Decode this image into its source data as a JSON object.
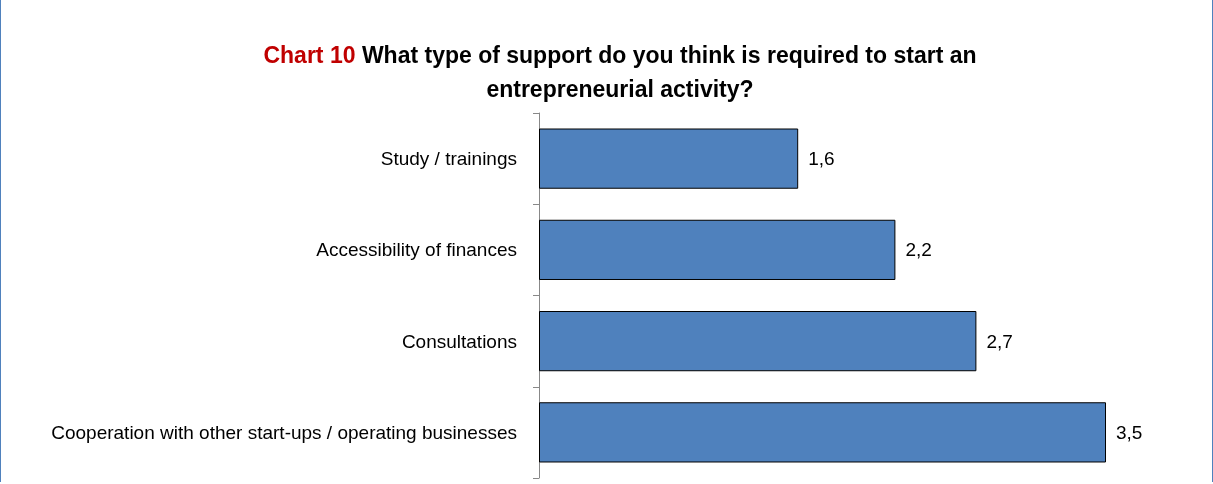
{
  "chart_data": {
    "type": "bar",
    "orientation": "horizontal",
    "title": "Chart 10 What type of support do you think is required to start an entrepreneurial activity?",
    "categories": [
      "Study / trainings",
      "Accessibility of finances",
      "Consultations",
      "Cooperation with other start-ups / operating businesses"
    ],
    "values": [
      1.6,
      2.2,
      2.7,
      3.5
    ],
    "color": "#4f81bd",
    "value_labels": [
      "1,6",
      "2,2",
      "2,7",
      "3,5"
    ]
  }
}
